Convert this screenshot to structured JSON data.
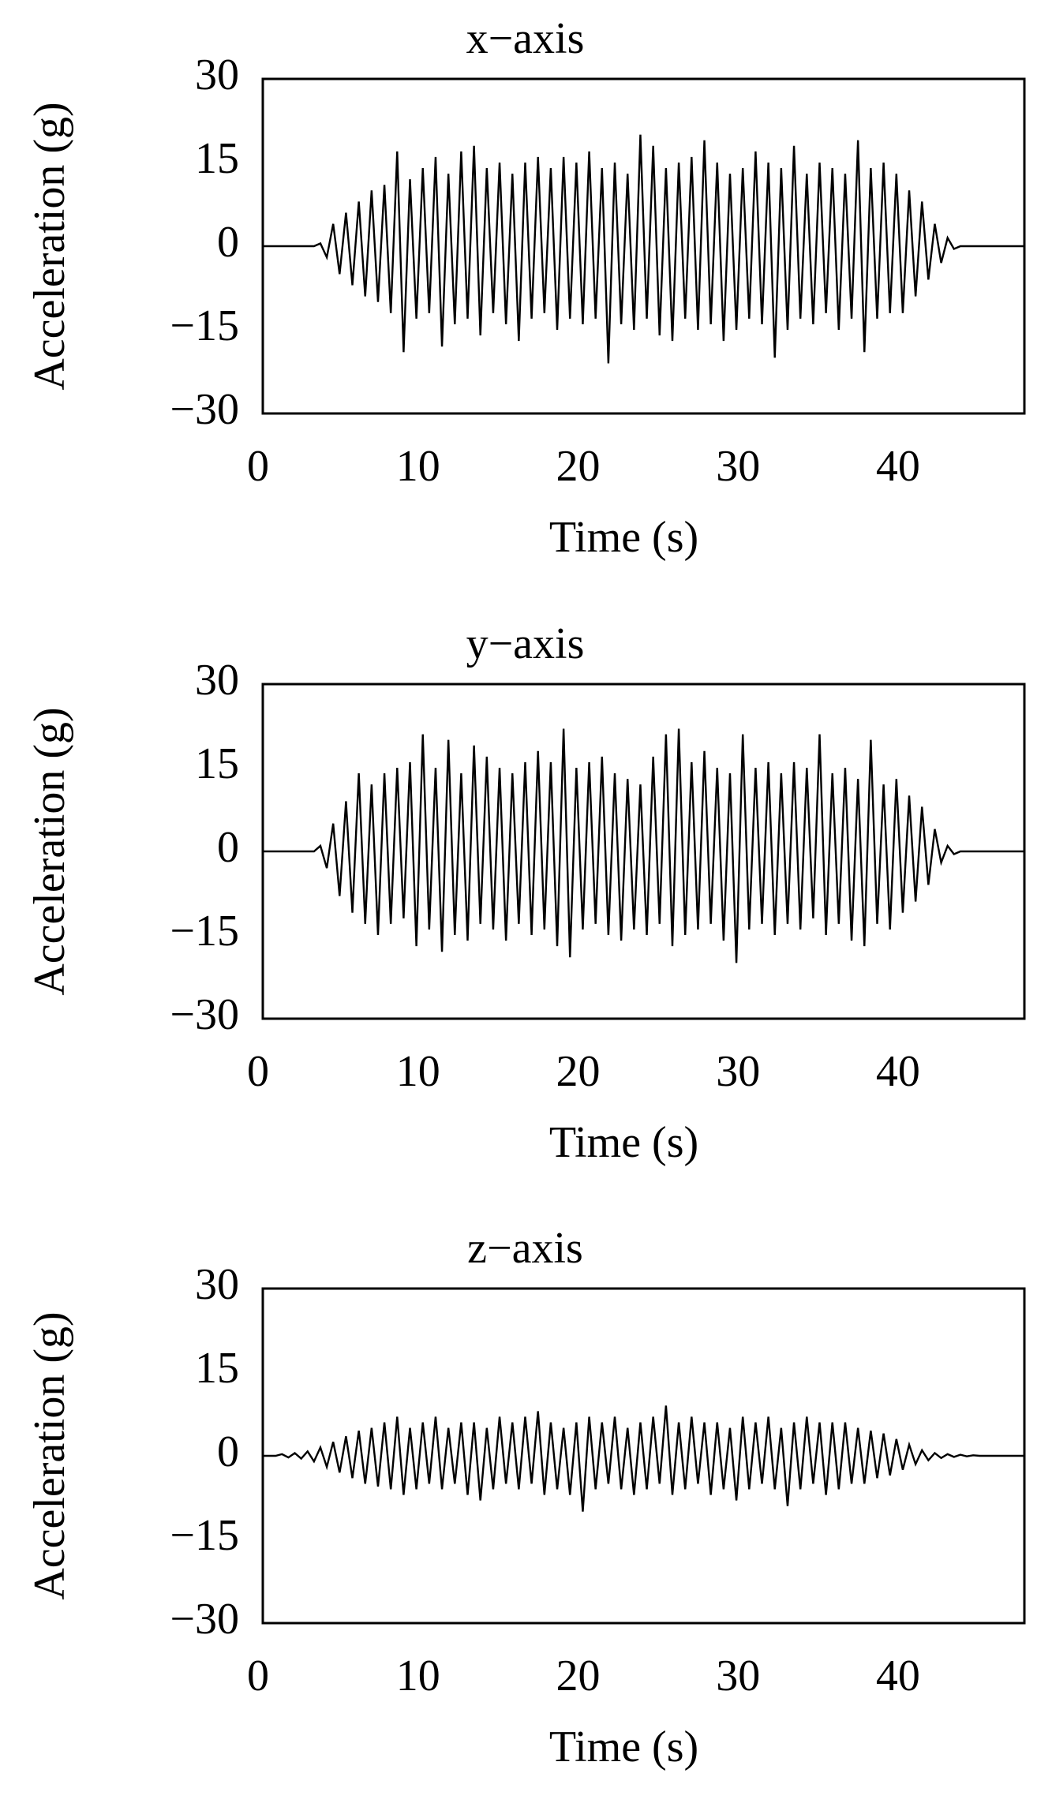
{
  "chart_data": [
    {
      "type": "line",
      "title": "x−axis",
      "xlabel": "Time (s)",
      "ylabel": "Acceleration (g)",
      "color": "#000000",
      "grid": false,
      "xlim": [
        0,
        47.6
      ],
      "ylim": [
        -30,
        30
      ],
      "xticks": [
        0,
        10,
        20,
        30,
        40
      ],
      "yticks": [
        {
          "value": -30,
          "label": "−30"
        },
        {
          "value": -15,
          "label": "−15"
        },
        0,
        15,
        30
      ],
      "x": [
        0,
        0.4,
        0.8,
        1.2,
        1.6,
        2,
        2.4,
        2.8,
        3.2,
        3.6,
        4,
        4.4,
        4.8,
        5.2,
        5.6,
        6,
        6.4,
        6.8,
        7.2,
        7.6,
        8,
        8.4,
        8.8,
        9.2,
        9.6,
        10,
        10.4,
        10.8,
        11.2,
        11.6,
        12,
        12.4,
        12.8,
        13.2,
        13.6,
        14,
        14.4,
        14.8,
        15.2,
        15.6,
        16,
        16.4,
        16.8,
        17.2,
        17.6,
        18,
        18.4,
        18.8,
        19.2,
        19.6,
        20,
        20.4,
        20.8,
        21.2,
        21.6,
        22,
        22.4,
        22.8,
        23.2,
        23.6,
        24,
        24.4,
        24.8,
        25.2,
        25.6,
        26,
        26.4,
        26.8,
        27.2,
        27.6,
        28,
        28.4,
        28.8,
        29.2,
        29.6,
        30,
        30.4,
        30.8,
        31.2,
        31.6,
        32,
        32.4,
        32.8,
        33.2,
        33.6,
        34,
        34.4,
        34.8,
        35.2,
        35.6,
        36,
        36.4,
        36.8,
        37.2,
        37.6,
        38,
        38.4,
        38.8,
        39.2,
        39.6,
        40,
        40.4,
        40.8,
        41.2,
        41.6,
        42,
        42.4,
        42.8,
        43.2,
        43.6,
        44,
        44.4,
        44.8,
        45.2,
        45.6,
        46,
        46.4,
        46.8,
        47.2,
        47.6
      ],
      "values": [
        0,
        0,
        0,
        0,
        0,
        0,
        0,
        0,
        0,
        0.5,
        -2,
        4,
        -5,
        6,
        -7,
        8,
        -9,
        10,
        -10,
        11,
        -12,
        17,
        -19,
        12,
        -13,
        14,
        -12,
        16,
        -18,
        13,
        -14,
        17,
        -13,
        18,
        -16,
        14,
        -12,
        15,
        -14,
        13,
        -17,
        15,
        -13,
        16,
        -12,
        14,
        -15,
        16,
        -13,
        15,
        -14,
        17,
        -13,
        14,
        -21,
        15,
        -14,
        13,
        -15,
        20,
        -13,
        18,
        -16,
        14,
        -17,
        15,
        -13,
        16,
        -15,
        19,
        -14,
        15,
        -17,
        13,
        -15,
        14,
        -13,
        17,
        -14,
        15,
        -20,
        14,
        -15,
        18,
        -13,
        13,
        -14,
        15,
        -12,
        14,
        -15,
        13,
        -13,
        19,
        -19,
        14,
        -13,
        15,
        -12,
        13,
        -12,
        10,
        -9,
        8,
        -6,
        4,
        -3,
        1.5,
        -0.5,
        0,
        0,
        0,
        0,
        0,
        0,
        0,
        0,
        0,
        0,
        0
      ]
    },
    {
      "type": "line",
      "title": "y−axis",
      "xlabel": "Time (s)",
      "ylabel": "Acceleration (g)",
      "color": "#000000",
      "grid": false,
      "xlim": [
        0,
        47.6
      ],
      "ylim": [
        -30,
        30
      ],
      "xticks": [
        0,
        10,
        20,
        30,
        40
      ],
      "yticks": [
        {
          "value": -30,
          "label": "−30"
        },
        {
          "value": -15,
          "label": "−15"
        },
        0,
        15,
        30
      ],
      "x": [
        0,
        0.4,
        0.8,
        1.2,
        1.6,
        2,
        2.4,
        2.8,
        3.2,
        3.6,
        4,
        4.4,
        4.8,
        5.2,
        5.6,
        6,
        6.4,
        6.8,
        7.2,
        7.6,
        8,
        8.4,
        8.8,
        9.2,
        9.6,
        10,
        10.4,
        10.8,
        11.2,
        11.6,
        12,
        12.4,
        12.8,
        13.2,
        13.6,
        14,
        14.4,
        14.8,
        15.2,
        15.6,
        16,
        16.4,
        16.8,
        17.2,
        17.6,
        18,
        18.4,
        18.8,
        19.2,
        19.6,
        20,
        20.4,
        20.8,
        21.2,
        21.6,
        22,
        22.4,
        22.8,
        23.2,
        23.6,
        24,
        24.4,
        24.8,
        25.2,
        25.6,
        26,
        26.4,
        26.8,
        27.2,
        27.6,
        28,
        28.4,
        28.8,
        29.2,
        29.6,
        30,
        30.4,
        30.8,
        31.2,
        31.6,
        32,
        32.4,
        32.8,
        33.2,
        33.6,
        34,
        34.4,
        34.8,
        35.2,
        35.6,
        36,
        36.4,
        36.8,
        37.2,
        37.6,
        38,
        38.4,
        38.8,
        39.2,
        39.6,
        40,
        40.4,
        40.8,
        41.2,
        41.6,
        42,
        42.4,
        42.8,
        43.2,
        43.6,
        44,
        44.4,
        44.8,
        45.2,
        45.6,
        46,
        46.4,
        46.8,
        47.2,
        47.6
      ],
      "values": [
        0,
        0,
        0,
        0,
        0,
        0,
        0,
        0,
        0,
        1,
        -3,
        5,
        -8,
        9,
        -11,
        14,
        -13,
        12,
        -15,
        14,
        -13,
        15,
        -12,
        16,
        -17,
        21,
        -14,
        15,
        -18,
        20,
        -15,
        14,
        -16,
        19,
        -13,
        17,
        -14,
        15,
        -16,
        14,
        -13,
        16,
        -15,
        18,
        -14,
        16,
        -17,
        22,
        -19,
        15,
        -14,
        16,
        -13,
        17,
        -15,
        14,
        -16,
        13,
        -14,
        12,
        -15,
        17,
        -13,
        21,
        -17,
        22,
        -15,
        16,
        -14,
        18,
        -13,
        15,
        -16,
        14,
        -20,
        21,
        -14,
        15,
        -13,
        16,
        -15,
        14,
        -13,
        16,
        -14,
        15,
        -12,
        21,
        -15,
        14,
        -13,
        15,
        -16,
        13,
        -17,
        20,
        -13,
        12,
        -14,
        13,
        -11,
        10,
        -9,
        8,
        -6,
        4,
        -2,
        1,
        -0.5,
        0,
        0,
        0,
        0,
        0,
        0,
        0,
        0,
        0,
        0,
        0
      ]
    },
    {
      "type": "line",
      "title": "z−axis",
      "xlabel": "Time (s)",
      "ylabel": "Acceleration (g)",
      "color": "#000000",
      "grid": false,
      "xlim": [
        0,
        47.6
      ],
      "ylim": [
        -30,
        30
      ],
      "xticks": [
        0,
        10,
        20,
        30,
        40
      ],
      "yticks": [
        {
          "value": -30,
          "label": "−30"
        },
        {
          "value": -15,
          "label": "−15"
        },
        0,
        15,
        30
      ],
      "x": [
        0,
        0.4,
        0.8,
        1.2,
        1.6,
        2,
        2.4,
        2.8,
        3.2,
        3.6,
        4,
        4.4,
        4.8,
        5.2,
        5.6,
        6,
        6.4,
        6.8,
        7.2,
        7.6,
        8,
        8.4,
        8.8,
        9.2,
        9.6,
        10,
        10.4,
        10.8,
        11.2,
        11.6,
        12,
        12.4,
        12.8,
        13.2,
        13.6,
        14,
        14.4,
        14.8,
        15.2,
        15.6,
        16,
        16.4,
        16.8,
        17.2,
        17.6,
        18,
        18.4,
        18.8,
        19.2,
        19.6,
        20,
        20.4,
        20.8,
        21.2,
        21.6,
        22,
        22.4,
        22.8,
        23.2,
        23.6,
        24,
        24.4,
        24.8,
        25.2,
        25.6,
        26,
        26.4,
        26.8,
        27.2,
        27.6,
        28,
        28.4,
        28.8,
        29.2,
        29.6,
        30,
        30.4,
        30.8,
        31.2,
        31.6,
        32,
        32.4,
        32.8,
        33.2,
        33.6,
        34,
        34.4,
        34.8,
        35.2,
        35.6,
        36,
        36.4,
        36.8,
        37.2,
        37.6,
        38,
        38.4,
        38.8,
        39.2,
        39.6,
        40,
        40.4,
        40.8,
        41.2,
        41.6,
        42,
        42.4,
        42.8,
        43.2,
        43.6,
        44,
        44.4,
        44.8,
        45.2,
        45.6,
        46,
        46.4,
        46.8,
        47.2,
        47.6
      ],
      "values": [
        0,
        0,
        0,
        0.3,
        -0.3,
        0.5,
        -0.5,
        0.8,
        -1,
        1.5,
        -2,
        2.5,
        -3,
        3.5,
        -4,
        4.5,
        -5,
        5,
        -5.5,
        6,
        -6,
        7,
        -7,
        5,
        -6,
        6,
        -5,
        7,
        -6,
        5,
        -5,
        6,
        -7,
        6,
        -8,
        5,
        -6,
        7,
        -5,
        6,
        -6,
        7,
        -5,
        8,
        -7,
        6,
        -6,
        5,
        -7,
        6,
        -10,
        7,
        -6,
        6,
        -5,
        7,
        -6,
        5,
        -7,
        6,
        -6,
        7,
        -5,
        9,
        -7,
        6,
        -6,
        7,
        -5,
        6,
        -7,
        6,
        -6,
        5,
        -8,
        7,
        -6,
        6,
        -5,
        7,
        -6,
        5,
        -9,
        6,
        -6,
        7,
        -5,
        6,
        -7,
        6,
        -6,
        6,
        -5,
        5,
        -5,
        4.5,
        -4,
        4,
        -3.5,
        3,
        -2.5,
        2,
        -1.5,
        1,
        -0.8,
        0.5,
        -0.4,
        0.3,
        -0.2,
        0.2,
        -0.1,
        0.1,
        0,
        0,
        0,
        0,
        0,
        0,
        0,
        0
      ]
    }
  ]
}
